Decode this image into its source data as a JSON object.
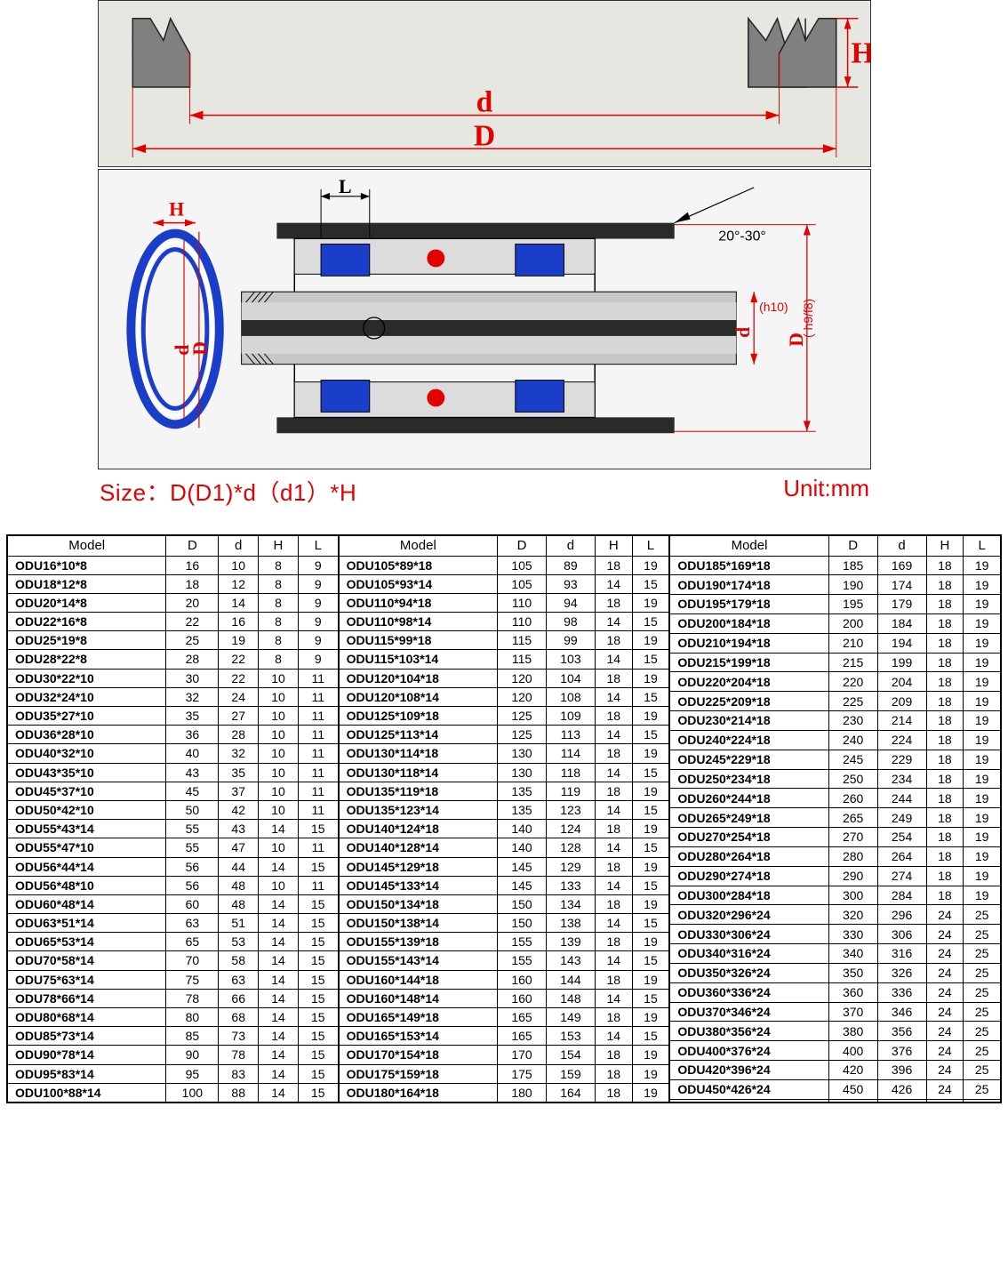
{
  "colors": {
    "accent_red": "#e40000",
    "diagram_bg_top": "#e5e7e0",
    "diagram_bg_mid": "#f5f5f5",
    "seal_gray": "#808080",
    "seal_dark": "#2a2a2a",
    "piston_blue": "#1a3ec9",
    "shaft_gray": "#bbbbbb",
    "border": "#000000"
  },
  "top_diagram": {
    "labels": {
      "H": "H",
      "d": "d",
      "D": "D"
    }
  },
  "mid_diagram": {
    "labels": {
      "L": "L",
      "H": "H",
      "d": "d",
      "D": "D",
      "d_tol": "(h10)",
      "D_tol": "( h9/f8)",
      "angle": "20°-30°"
    }
  },
  "size_text": "Size：D(D1)*d（d1）*H",
  "unit_text": "Unit:mm",
  "table": {
    "headers": [
      "Model",
      "D",
      "d",
      "H",
      "L"
    ],
    "groups": [
      [
        [
          "ODU16*10*8",
          "16",
          "10",
          "8",
          "9"
        ],
        [
          "ODU18*12*8",
          "18",
          "12",
          "8",
          "9"
        ],
        [
          "ODU20*14*8",
          "20",
          "14",
          "8",
          "9"
        ],
        [
          "ODU22*16*8",
          "22",
          "16",
          "8",
          "9"
        ],
        [
          "ODU25*19*8",
          "25",
          "19",
          "8",
          "9"
        ],
        [
          "ODU28*22*8",
          "28",
          "22",
          "8",
          "9"
        ],
        [
          "ODU30*22*10",
          "30",
          "22",
          "10",
          "11"
        ],
        [
          "ODU32*24*10",
          "32",
          "24",
          "10",
          "11"
        ],
        [
          "ODU35*27*10",
          "35",
          "27",
          "10",
          "11"
        ],
        [
          "ODU36*28*10",
          "36",
          "28",
          "10",
          "11"
        ],
        [
          "ODU40*32*10",
          "40",
          "32",
          "10",
          "11"
        ],
        [
          "ODU43*35*10",
          "43",
          "35",
          "10",
          "11"
        ],
        [
          "ODU45*37*10",
          "45",
          "37",
          "10",
          "11"
        ],
        [
          "ODU50*42*10",
          "50",
          "42",
          "10",
          "11"
        ],
        [
          "ODU55*43*14",
          "55",
          "43",
          "14",
          "15"
        ],
        [
          "ODU55*47*10",
          "55",
          "47",
          "10",
          "11"
        ],
        [
          "ODU56*44*14",
          "56",
          "44",
          "14",
          "15"
        ],
        [
          "ODU56*48*10",
          "56",
          "48",
          "10",
          "11"
        ],
        [
          "ODU60*48*14",
          "60",
          "48",
          "14",
          "15"
        ],
        [
          "ODU63*51*14",
          "63",
          "51",
          "14",
          "15"
        ],
        [
          "ODU65*53*14",
          "65",
          "53",
          "14",
          "15"
        ],
        [
          "ODU70*58*14",
          "70",
          "58",
          "14",
          "15"
        ],
        [
          "ODU75*63*14",
          "75",
          "63",
          "14",
          "15"
        ],
        [
          "ODU78*66*14",
          "78",
          "66",
          "14",
          "15"
        ],
        [
          "ODU80*68*14",
          "80",
          "68",
          "14",
          "15"
        ],
        [
          "ODU85*73*14",
          "85",
          "73",
          "14",
          "15"
        ],
        [
          "ODU90*78*14",
          "90",
          "78",
          "14",
          "15"
        ],
        [
          "ODU95*83*14",
          "95",
          "83",
          "14",
          "15"
        ],
        [
          "ODU100*88*14",
          "100",
          "88",
          "14",
          "15"
        ]
      ],
      [
        [
          "ODU105*89*18",
          "105",
          "89",
          "18",
          "19"
        ],
        [
          "ODU105*93*14",
          "105",
          "93",
          "14",
          "15"
        ],
        [
          "ODU110*94*18",
          "110",
          "94",
          "18",
          "19"
        ],
        [
          "ODU110*98*14",
          "110",
          "98",
          "14",
          "15"
        ],
        [
          "ODU115*99*18",
          "115",
          "99",
          "18",
          "19"
        ],
        [
          "ODU115*103*14",
          "115",
          "103",
          "14",
          "15"
        ],
        [
          "ODU120*104*18",
          "120",
          "104",
          "18",
          "19"
        ],
        [
          "ODU120*108*14",
          "120",
          "108",
          "14",
          "15"
        ],
        [
          "ODU125*109*18",
          "125",
          "109",
          "18",
          "19"
        ],
        [
          "ODU125*113*14",
          "125",
          "113",
          "14",
          "15"
        ],
        [
          "ODU130*114*18",
          "130",
          "114",
          "18",
          "19"
        ],
        [
          "ODU130*118*14",
          "130",
          "118",
          "14",
          "15"
        ],
        [
          "ODU135*119*18",
          "135",
          "119",
          "18",
          "19"
        ],
        [
          "ODU135*123*14",
          "135",
          "123",
          "14",
          "15"
        ],
        [
          "ODU140*124*18",
          "140",
          "124",
          "18",
          "19"
        ],
        [
          "ODU140*128*14",
          "140",
          "128",
          "14",
          "15"
        ],
        [
          "ODU145*129*18",
          "145",
          "129",
          "18",
          "19"
        ],
        [
          "ODU145*133*14",
          "145",
          "133",
          "14",
          "15"
        ],
        [
          "ODU150*134*18",
          "150",
          "134",
          "18",
          "19"
        ],
        [
          "ODU150*138*14",
          "150",
          "138",
          "14",
          "15"
        ],
        [
          "ODU155*139*18",
          "155",
          "139",
          "18",
          "19"
        ],
        [
          "ODU155*143*14",
          "155",
          "143",
          "14",
          "15"
        ],
        [
          "ODU160*144*18",
          "160",
          "144",
          "18",
          "19"
        ],
        [
          "ODU160*148*14",
          "160",
          "148",
          "14",
          "15"
        ],
        [
          "ODU165*149*18",
          "165",
          "149",
          "18",
          "19"
        ],
        [
          "ODU165*153*14",
          "165",
          "153",
          "14",
          "15"
        ],
        [
          "ODU170*154*18",
          "170",
          "154",
          "18",
          "19"
        ],
        [
          "ODU175*159*18",
          "175",
          "159",
          "18",
          "19"
        ],
        [
          "ODU180*164*18",
          "180",
          "164",
          "18",
          "19"
        ]
      ],
      [
        [
          "ODU185*169*18",
          "185",
          "169",
          "18",
          "19"
        ],
        [
          "ODU190*174*18",
          "190",
          "174",
          "18",
          "19"
        ],
        [
          "ODU195*179*18",
          "195",
          "179",
          "18",
          "19"
        ],
        [
          "ODU200*184*18",
          "200",
          "184",
          "18",
          "19"
        ],
        [
          "ODU210*194*18",
          "210",
          "194",
          "18",
          "19"
        ],
        [
          "ODU215*199*18",
          "215",
          "199",
          "18",
          "19"
        ],
        [
          "ODU220*204*18",
          "220",
          "204",
          "18",
          "19"
        ],
        [
          "ODU225*209*18",
          "225",
          "209",
          "18",
          "19"
        ],
        [
          "ODU230*214*18",
          "230",
          "214",
          "18",
          "19"
        ],
        [
          "ODU240*224*18",
          "240",
          "224",
          "18",
          "19"
        ],
        [
          "ODU245*229*18",
          "245",
          "229",
          "18",
          "19"
        ],
        [
          "ODU250*234*18",
          "250",
          "234",
          "18",
          "19"
        ],
        [
          "ODU260*244*18",
          "260",
          "244",
          "18",
          "19"
        ],
        [
          "ODU265*249*18",
          "265",
          "249",
          "18",
          "19"
        ],
        [
          "ODU270*254*18",
          "270",
          "254",
          "18",
          "19"
        ],
        [
          "ODU280*264*18",
          "280",
          "264",
          "18",
          "19"
        ],
        [
          "ODU290*274*18",
          "290",
          "274",
          "18",
          "19"
        ],
        [
          "ODU300*284*18",
          "300",
          "284",
          "18",
          "19"
        ],
        [
          "ODU320*296*24",
          "320",
          "296",
          "24",
          "25"
        ],
        [
          "ODU330*306*24",
          "330",
          "306",
          "24",
          "25"
        ],
        [
          "ODU340*316*24",
          "340",
          "316",
          "24",
          "25"
        ],
        [
          "ODU350*326*24",
          "350",
          "326",
          "24",
          "25"
        ],
        [
          "ODU360*336*24",
          "360",
          "336",
          "24",
          "25"
        ],
        [
          "ODU370*346*24",
          "370",
          "346",
          "24",
          "25"
        ],
        [
          "ODU380*356*24",
          "380",
          "356",
          "24",
          "25"
        ],
        [
          "ODU400*376*24",
          "400",
          "376",
          "24",
          "25"
        ],
        [
          "ODU420*396*24",
          "420",
          "396",
          "24",
          "25"
        ],
        [
          "ODU450*426*24",
          "450",
          "426",
          "24",
          "25"
        ],
        [
          "",
          "",
          "",
          "",
          ""
        ]
      ]
    ]
  }
}
